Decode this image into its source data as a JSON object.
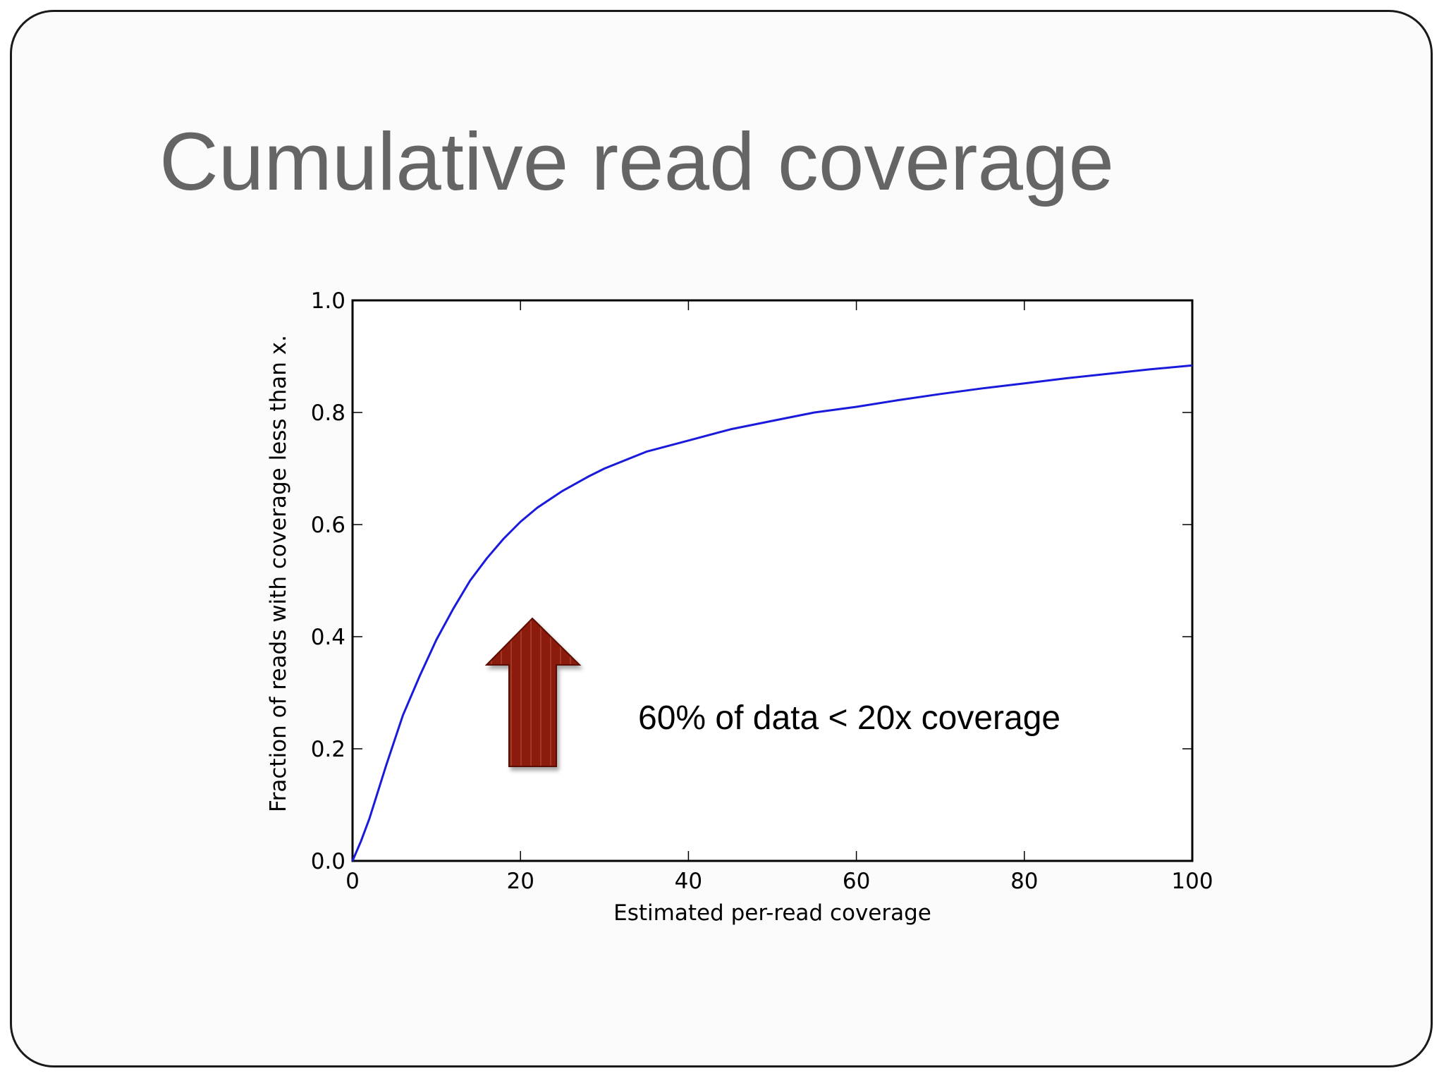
{
  "slide": {
    "title": "Cumulative read coverage",
    "annotation": "60% of data < 20x coverage",
    "arrow_color": "#8b1a0a"
  },
  "chart_data": {
    "type": "line",
    "xlabel": "Estimated per-read coverage",
    "ylabel": "Fraction of reads with coverage less than x.",
    "xlim": [
      0,
      100
    ],
    "ylim": [
      0.0,
      1.0
    ],
    "xticks": [
      "0",
      "20",
      "40",
      "60",
      "80",
      "100"
    ],
    "yticks": [
      "0.0",
      "0.2",
      "0.4",
      "0.6",
      "0.8",
      "1.0"
    ],
    "grid": false,
    "series": [
      {
        "color": "#1a1adc",
        "x": [
          0,
          1,
          2,
          4,
          6,
          8,
          10,
          12,
          14,
          16,
          18,
          20,
          22,
          25,
          28,
          30,
          35,
          40,
          45,
          50,
          55,
          60,
          65,
          70,
          75,
          80,
          85,
          90,
          95,
          100
        ],
        "y": [
          0.0,
          0.035,
          0.075,
          0.17,
          0.26,
          0.33,
          0.395,
          0.45,
          0.5,
          0.54,
          0.575,
          0.605,
          0.63,
          0.66,
          0.685,
          0.7,
          0.73,
          0.75,
          0.77,
          0.785,
          0.8,
          0.81,
          0.822,
          0.833,
          0.843,
          0.852,
          0.861,
          0.869,
          0.877,
          0.884
        ]
      }
    ]
  }
}
